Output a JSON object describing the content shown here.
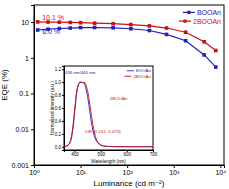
{
  "chart_data": [
    {
      "type": "line",
      "xlabel": "Luminance (cd m⁻²)",
      "ylabel": "EQE (%)",
      "log": true,
      "xlim": [
        1,
        12000
      ],
      "ylim": [
        0.001,
        30
      ],
      "xticks": [
        {
          "value": 1,
          "label": "10⁰"
        },
        {
          "value": 10,
          "label": "10¹"
        },
        {
          "value": 100,
          "label": "10²"
        },
        {
          "value": 1000,
          "label": "10³"
        },
        {
          "value": 10000,
          "label": "10⁴"
        }
      ],
      "yticks": [
        0.001,
        0.01,
        0.1,
        1,
        10
      ],
      "legend": "upper right",
      "x": [
        1.2,
        2.0,
        3.5,
        6,
        10,
        20,
        50,
        120,
        300,
        700,
        1800,
        4500,
        8000
      ],
      "series": [
        {
          "name": "BOOAn",
          "color": "#2222bb",
          "marker": "square",
          "values": [
            6.0,
            6.3,
            6.6,
            6.8,
            7.0,
            7.05,
            6.9,
            6.5,
            5.8,
            4.5,
            3.0,
            1.2,
            0.55
          ]
        },
        {
          "name": "2BOOAn",
          "color": "#cc1111",
          "marker": "square",
          "values": [
            10.1,
            10.0,
            9.9,
            9.75,
            9.6,
            9.3,
            9.0,
            8.5,
            7.8,
            6.8,
            5.2,
            2.8,
            1.6
          ]
        }
      ],
      "annotations": [
        {
          "text": "10.1 %",
          "x": 1.5,
          "y": 11.5,
          "color": "#cc1111"
        },
        {
          "text": "6.0 %",
          "x": 1.5,
          "y": 4.5,
          "color": "#2222bb"
        }
      ]
    },
    {
      "type": "line",
      "xlabel": "Wavelength (nm)",
      "ylabel": "Normalized intensity (a.u.)",
      "xlim": [
        360,
        700
      ],
      "ylim": [
        -0.05,
        1.25
      ],
      "xticks": [
        400,
        500,
        600,
        700
      ],
      "yticks": [
        {
          "value": 0,
          "label": "0.0"
        },
        0.2,
        0.4,
        0.6,
        0.8,
        {
          "value": 1,
          "label": "1.0"
        },
        1.2
      ],
      "legend": "upper right",
      "series": [
        {
          "name": "BOOAn",
          "color": "#2222bb",
          "x": [
            360,
            365,
            370,
            375,
            380,
            385,
            390,
            395,
            400,
            405,
            410,
            415,
            420,
            425,
            430,
            433,
            436,
            439,
            442,
            445,
            450,
            455,
            460,
            465,
            470,
            475,
            480,
            485,
            490,
            495,
            500,
            510,
            520,
            530,
            540,
            550,
            560,
            570,
            580,
            590,
            600,
            610,
            620,
            630,
            640,
            650,
            660,
            670,
            680,
            690,
            700
          ],
          "values": [
            0.005,
            0.007,
            0.01,
            0.02,
            0.04,
            0.08,
            0.16,
            0.3,
            0.5,
            0.72,
            0.88,
            0.96,
            1.0,
            1.0,
            0.99,
            1.0,
            0.99,
            0.97,
            0.93,
            0.88,
            0.78,
            0.65,
            0.5,
            0.37,
            0.26,
            0.18,
            0.12,
            0.08,
            0.055,
            0.038,
            0.025,
            0.012,
            0.007,
            0.004,
            0.003,
            0.002,
            0.0015,
            0.001,
            0.001,
            0.001,
            0.001,
            0.001,
            0.001,
            0.001,
            0.001,
            0.001,
            0.001,
            0.001,
            0.001,
            0.001,
            0.001
          ]
        },
        {
          "name": "2BOOAn",
          "color": "#cc1111",
          "x": [
            360,
            365,
            370,
            375,
            380,
            385,
            390,
            395,
            400,
            405,
            410,
            415,
            420,
            425,
            430,
            435,
            440,
            445,
            450,
            455,
            460,
            465,
            470,
            475,
            480,
            485,
            490,
            495,
            500,
            510,
            520,
            530,
            540,
            550,
            560,
            570,
            580,
            590,
            600,
            610,
            620,
            630,
            640,
            650,
            660,
            670,
            680,
            690,
            700
          ],
          "values": [
            0.005,
            0.008,
            0.012,
            0.025,
            0.05,
            0.1,
            0.2,
            0.35,
            0.55,
            0.75,
            0.9,
            0.97,
            1.0,
            1.0,
            0.99,
            1.0,
            0.99,
            0.95,
            0.87,
            0.76,
            0.62,
            0.48,
            0.35,
            0.24,
            0.16,
            0.1,
            0.068,
            0.045,
            0.03,
            0.014,
            0.008,
            0.005,
            0.003,
            0.002,
            0.0015,
            0.001,
            0.001,
            0.001,
            0.001,
            0.001,
            0.001,
            0.001,
            0.001,
            0.001,
            0.001,
            0.001,
            0.001,
            0.001,
            0.001
          ]
        }
      ],
      "annotations": [
        {
          "text": "436 nm/440 nm",
          "x": 363,
          "y": 1.12,
          "color": "#2222bb"
        },
        {
          "text": "CIE (0.151, 0.073)",
          "x": 440,
          "y": 0.22,
          "color": "#cc1111"
        },
        {
          "text": "2BOOAn",
          "x": 535,
          "y": 0.72,
          "color": "#cc1111"
        }
      ]
    }
  ]
}
